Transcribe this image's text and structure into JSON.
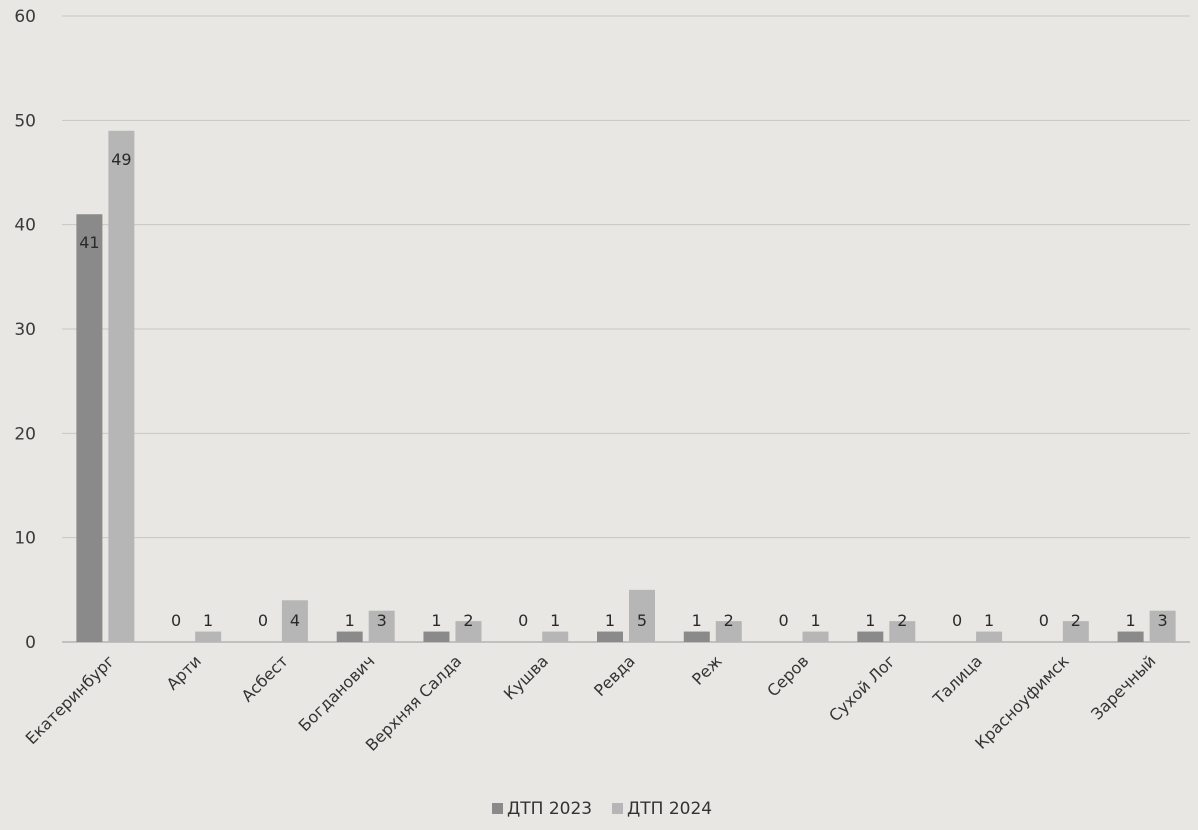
{
  "chart_data": {
    "type": "bar",
    "categories": [
      "Екатеринбург",
      "Арти",
      "Асбест",
      "Богданович",
      "Верхняя Салда",
      "Кушва",
      "Ревда",
      "Реж",
      "Серов",
      "Сухой Лог",
      "Талица",
      "Красноуфимск",
      "Заречный"
    ],
    "series": [
      {
        "name": "ДТП 2023",
        "color": "#8a8a8a",
        "values": [
          41,
          0,
          0,
          1,
          1,
          0,
          1,
          1,
          0,
          1,
          0,
          0,
          1
        ]
      },
      {
        "name": "ДТП 2024",
        "color": "#b6b6b6",
        "values": [
          49,
          1,
          4,
          3,
          2,
          1,
          5,
          2,
          1,
          2,
          1,
          2,
          3
        ]
      }
    ],
    "title": "",
    "xlabel": "",
    "ylabel": "",
    "ylim": [
      0,
      60
    ],
    "yticks": [
      0,
      10,
      20,
      30,
      40,
      50,
      60
    ],
    "grid": true,
    "legend": "bottom",
    "data_labels": true
  }
}
